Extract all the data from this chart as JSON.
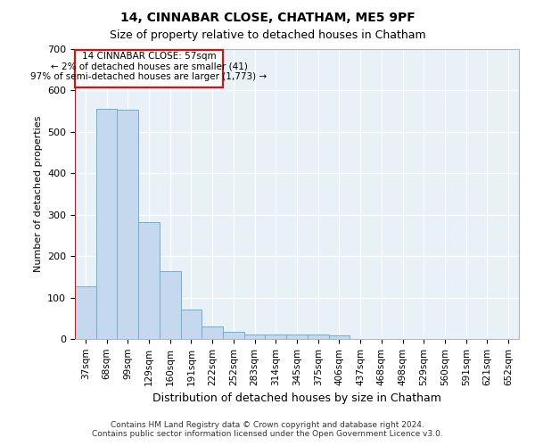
{
  "title": "14, CINNABAR CLOSE, CHATHAM, ME5 9PF",
  "subtitle": "Size of property relative to detached houses in Chatham",
  "xlabel": "Distribution of detached houses by size in Chatham",
  "ylabel": "Number of detached properties",
  "footer_line1": "Contains HM Land Registry data © Crown copyright and database right 2024.",
  "footer_line2": "Contains public sector information licensed under the Open Government Licence v3.0.",
  "categories": [
    "37sqm",
    "68sqm",
    "99sqm",
    "129sqm",
    "160sqm",
    "191sqm",
    "222sqm",
    "252sqm",
    "283sqm",
    "314sqm",
    "345sqm",
    "375sqm",
    "406sqm",
    "437sqm",
    "468sqm",
    "498sqm",
    "529sqm",
    "560sqm",
    "591sqm",
    "621sqm",
    "652sqm"
  ],
  "values": [
    128,
    556,
    554,
    283,
    164,
    72,
    30,
    18,
    10,
    10,
    10,
    10,
    8,
    0,
    0,
    0,
    0,
    0,
    0,
    0,
    0
  ],
  "bar_color": "#c5d8ed",
  "bar_edge_color": "#6aaed6",
  "background_color": "#e8f0f8",
  "grid_color": "#d0d8e8",
  "annotation_box_text_line1": "14 CINNABAR CLOSE: 57sqm",
  "annotation_box_text_line2": "← 2% of detached houses are smaller (41)",
  "annotation_box_text_line3": "97% of semi-detached houses are larger (1,773) →",
  "red_line_x": -0.5,
  "ylim": [
    0,
    700
  ],
  "yticks": [
    0,
    100,
    200,
    300,
    400,
    500,
    600,
    700
  ],
  "title_fontsize": 10,
  "subtitle_fontsize": 9,
  "xlabel_fontsize": 9,
  "ylabel_fontsize": 8,
  "tick_fontsize": 7.5,
  "footer_fontsize": 6.5
}
